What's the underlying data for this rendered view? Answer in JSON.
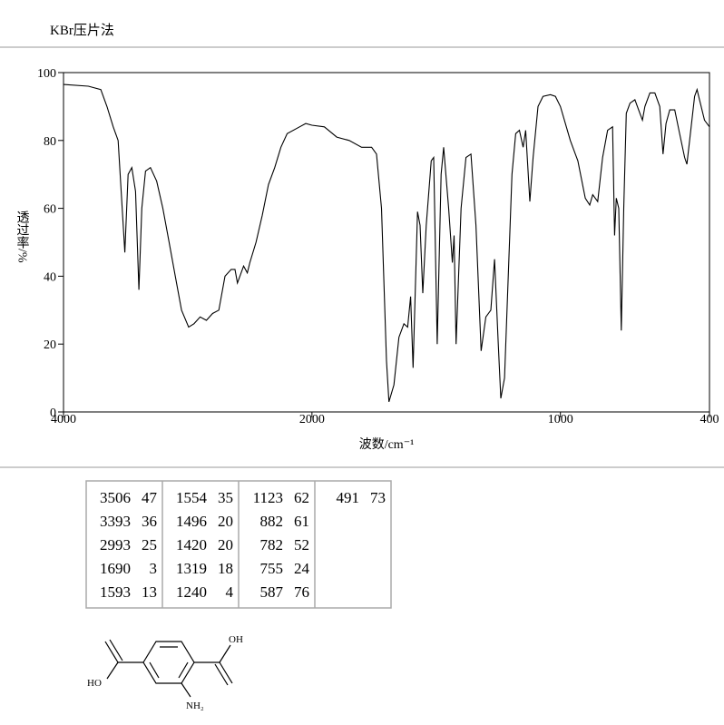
{
  "header": {
    "title": "KBr压片法"
  },
  "chart_data": {
    "type": "line",
    "xlabel": "波数/cm⁻¹",
    "ylabel": "透过率/%",
    "xlim": [
      4000,
      400
    ],
    "ylim": [
      0,
      100
    ],
    "xticks": [
      4000,
      2000,
      1000,
      400
    ],
    "yticks": [
      0,
      20,
      40,
      60,
      80,
      100
    ],
    "x": [
      4000,
      3800,
      3700,
      3650,
      3600,
      3560,
      3506,
      3480,
      3450,
      3420,
      3393,
      3370,
      3340,
      3300,
      3250,
      3200,
      3150,
      3100,
      3050,
      2993,
      2950,
      2900,
      2850,
      2800,
      2750,
      2700,
      2650,
      2620,
      2600,
      2550,
      2520,
      2500,
      2450,
      2400,
      2350,
      2300,
      2250,
      2200,
      2100,
      2050,
      2000,
      1950,
      1900,
      1850,
      1800,
      1760,
      1740,
      1720,
      1700,
      1690,
      1670,
      1650,
      1630,
      1615,
      1603,
      1593,
      1575,
      1565,
      1554,
      1540,
      1520,
      1510,
      1496,
      1480,
      1470,
      1450,
      1435,
      1428,
      1420,
      1400,
      1380,
      1360,
      1340,
      1319,
      1300,
      1280,
      1265,
      1250,
      1240,
      1225,
      1210,
      1195,
      1180,
      1165,
      1150,
      1140,
      1123,
      1110,
      1090,
      1070,
      1040,
      1020,
      1000,
      960,
      930,
      900,
      882,
      870,
      850,
      830,
      810,
      790,
      782,
      775,
      765,
      755,
      745,
      735,
      720,
      700,
      680,
      670,
      660,
      640,
      620,
      600,
      587,
      575,
      560,
      540,
      520,
      500,
      491,
      480,
      460,
      450,
      440,
      420,
      400
    ],
    "series": [
      {
        "name": "IR",
        "color": "#000000",
        "values": [
          96.5,
          96,
          95,
          90,
          84,
          80,
          47,
          70,
          72,
          65,
          36,
          60,
          71,
          72,
          68,
          60,
          50,
          40,
          30,
          25,
          26,
          28,
          27,
          29,
          30,
          40,
          42,
          42,
          38,
          43,
          41,
          44,
          50,
          58,
          67,
          72,
          78,
          82,
          84,
          85,
          84.5,
          84,
          81,
          80,
          78,
          78,
          76,
          60,
          15,
          3,
          8,
          22,
          26,
          25,
          34,
          13,
          59,
          55,
          35,
          55,
          74,
          75,
          20,
          70,
          78,
          60,
          44,
          52,
          20,
          60,
          75,
          76,
          55,
          18,
          28,
          30,
          45,
          20,
          4,
          10,
          40,
          70,
          82,
          83,
          78,
          83,
          62,
          75,
          90,
          93,
          93.5,
          93,
          90,
          80,
          74,
          63,
          61,
          64,
          62,
          75,
          83,
          84,
          52,
          63,
          60,
          24,
          60,
          88,
          91,
          92,
          88,
          86,
          90,
          94,
          94,
          90,
          76,
          85,
          89,
          89,
          82,
          75,
          73,
          80,
          93,
          95,
          92,
          86,
          84
        ]
      }
    ]
  },
  "table": {
    "rows": [
      [
        [
          "3506",
          "47"
        ],
        [
          "1554",
          "35"
        ],
        [
          "1123",
          "62"
        ],
        [
          "491",
          "73"
        ]
      ],
      [
        [
          "3393",
          "36"
        ],
        [
          "1496",
          "20"
        ],
        [
          "882",
          "61"
        ]
      ],
      [
        [
          "2993",
          "25"
        ],
        [
          "1420",
          "20"
        ],
        [
          "782",
          "52"
        ]
      ],
      [
        [
          "1690",
          "3"
        ],
        [
          "1319",
          "18"
        ],
        [
          "755",
          "24"
        ]
      ],
      [
        [
          "1593",
          "13"
        ],
        [
          "1240",
          "4"
        ],
        [
          "587",
          "76"
        ]
      ]
    ]
  },
  "structure": {
    "labels": [
      "OH",
      "HO",
      "NH₂"
    ]
  }
}
